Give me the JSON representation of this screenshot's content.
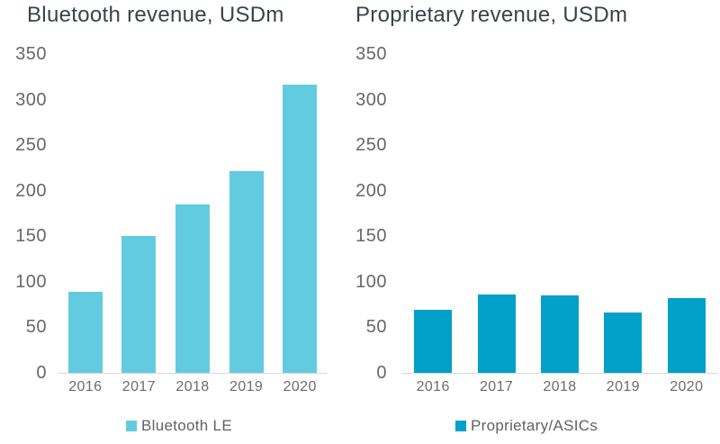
{
  "figure": {
    "background": "#ffffff",
    "axis_line_color": "#d9d9d9",
    "title_text_color": "#3b424c",
    "tick_text_color": "#66676c",
    "legend_text_color": "#5f6166"
  },
  "chart_data": [
    {
      "type": "bar",
      "title": "Bluetooth revenue, USDm",
      "categories": [
        "2016",
        "2017",
        "2018",
        "2019",
        "2020"
      ],
      "values": [
        89,
        150,
        185,
        221,
        316
      ],
      "legend": "Bluetooth LE",
      "bar_color": "#63cbdf",
      "xlabel": "",
      "ylabel": "",
      "ylim": [
        0,
        350
      ],
      "y_ticks": [
        0,
        50,
        100,
        150,
        200,
        250,
        300,
        350
      ],
      "grid": false,
      "legend_position": "bottom"
    },
    {
      "type": "bar",
      "title": "Proprietary revenue, USDm",
      "categories": [
        "2016",
        "2017",
        "2018",
        "2019",
        "2020"
      ],
      "values": [
        69,
        86,
        85,
        66,
        82
      ],
      "legend": "Proprietary/ASICs",
      "bar_color": "#00a0c8",
      "xlabel": "",
      "ylabel": "",
      "ylim": [
        0,
        350
      ],
      "y_ticks": [
        0,
        50,
        100,
        150,
        200,
        250,
        300,
        350
      ],
      "grid": false,
      "legend_position": "bottom"
    }
  ]
}
